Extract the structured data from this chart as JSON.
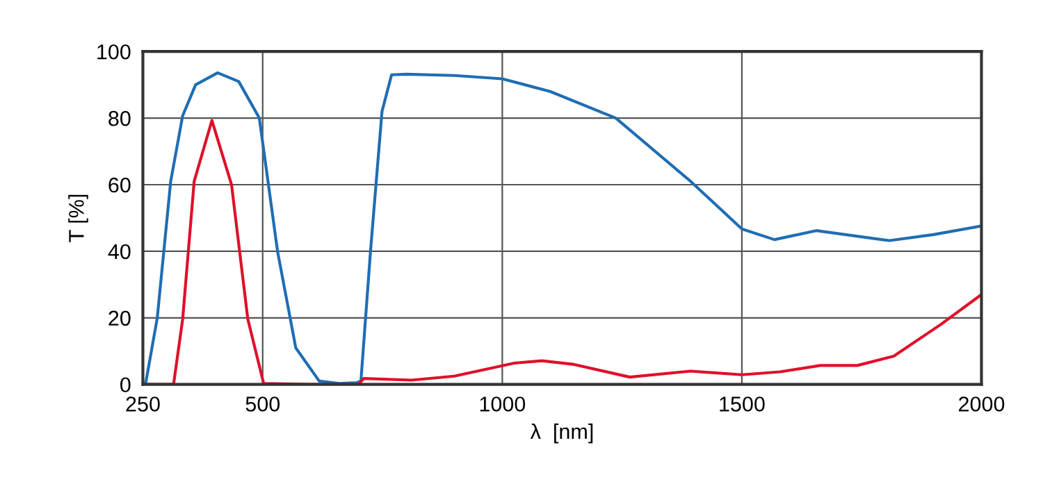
{
  "chart_data": {
    "type": "line",
    "xlabel": "λ  [nm]",
    "ylabel": "T [%]",
    "xlim": [
      250,
      2000
    ],
    "ylim": [
      0,
      100
    ],
    "xticks": [
      250,
      500,
      1000,
      1500,
      2000
    ],
    "yticks": [
      0,
      20,
      40,
      60,
      80,
      100
    ],
    "grid": true,
    "line_style": "solid",
    "marker": "none",
    "series": [
      {
        "color": "#1f6db4",
        "x": [
          250,
          256,
          280,
          308,
          333,
          360,
          406,
          450,
          493,
          531,
          569,
          618,
          660,
          696,
          705,
          725,
          749,
          769,
          800,
          900,
          1000,
          1100,
          1237,
          1393,
          1500,
          1568,
          1655,
          1808,
          1900,
          2000
        ],
        "values": [
          0,
          0.5,
          20,
          61,
          80.7,
          90,
          93.6,
          91,
          80,
          40,
          11,
          1,
          0.3,
          0.5,
          1,
          40,
          82,
          93,
          93.2,
          92.8,
          91.8,
          88,
          80,
          61,
          46.7,
          43.5,
          46.2,
          43.2,
          45,
          47.6
        ]
      },
      {
        "color": "#e0102a",
        "x": [
          250,
          314,
          333,
          357,
          394,
          435,
          469,
          502,
          600,
          700,
          711,
          811,
          900,
          1025,
          1083,
          1150,
          1266,
          1393,
          1500,
          1580,
          1664,
          1741,
          1817,
          1915,
          2000
        ],
        "values": [
          0,
          0,
          19.6,
          61,
          79.3,
          60,
          19.6,
          0.3,
          0,
          0,
          1.8,
          1.3,
          2.5,
          6.4,
          7.1,
          6,
          2.2,
          4,
          2.9,
          3.8,
          5.7,
          5.7,
          8.5,
          18,
          27
        ]
      }
    ]
  }
}
